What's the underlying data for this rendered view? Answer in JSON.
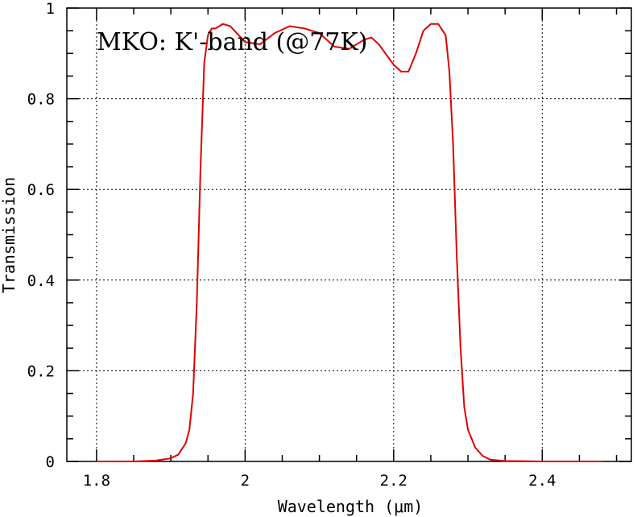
{
  "chart_data": {
    "type": "line",
    "annotation": "MKO: K'-band (@77K)",
    "xlabel": "Wavelength (μm)",
    "ylabel": "Transmission",
    "xlim": [
      1.76,
      2.52
    ],
    "ylim": [
      0,
      1
    ],
    "x_ticks": [
      1.8,
      2.0,
      2.2,
      2.4
    ],
    "x_tick_labels": [
      "1.8",
      "2",
      "2.2",
      "2.4"
    ],
    "y_ticks": [
      0,
      0.2,
      0.4,
      0.6,
      0.8,
      1.0
    ],
    "y_tick_labels": [
      "0",
      "0.2",
      "0.4",
      "0.6",
      "0.8",
      "1"
    ],
    "grid": true,
    "series_color": "#e00000",
    "series": [
      {
        "x": [
          1.8,
          1.85,
          1.88,
          1.9,
          1.91,
          1.92,
          1.925,
          1.93,
          1.935,
          1.94,
          1.945,
          1.95,
          1.955,
          1.96,
          1.97,
          1.98,
          2.0,
          2.02,
          2.04,
          2.06,
          2.08,
          2.1,
          2.12,
          2.14,
          2.16,
          2.17,
          2.18,
          2.2,
          2.21,
          2.22,
          2.23,
          2.24,
          2.25,
          2.26,
          2.27,
          2.275,
          2.28,
          2.285,
          2.29,
          2.295,
          2.3,
          2.31,
          2.32,
          2.33,
          2.35,
          2.4,
          2.48
        ],
        "y": [
          0,
          0,
          0.002,
          0.007,
          0.015,
          0.04,
          0.07,
          0.15,
          0.35,
          0.65,
          0.88,
          0.94,
          0.955,
          0.955,
          0.965,
          0.96,
          0.925,
          0.92,
          0.945,
          0.96,
          0.955,
          0.945,
          0.915,
          0.91,
          0.93,
          0.935,
          0.92,
          0.875,
          0.86,
          0.86,
          0.9,
          0.95,
          0.965,
          0.965,
          0.94,
          0.86,
          0.7,
          0.45,
          0.25,
          0.12,
          0.07,
          0.03,
          0.012,
          0.004,
          0.001,
          0,
          0
        ]
      }
    ]
  }
}
